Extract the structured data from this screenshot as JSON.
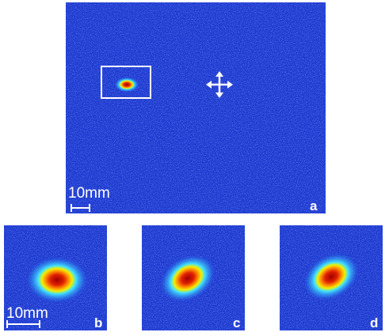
{
  "panels": [
    {
      "label": "a",
      "scale_bar": "10mm"
    },
    {
      "label": "b",
      "scale_bar": "10mm"
    },
    {
      "label": "c"
    },
    {
      "label": "d"
    }
  ]
}
